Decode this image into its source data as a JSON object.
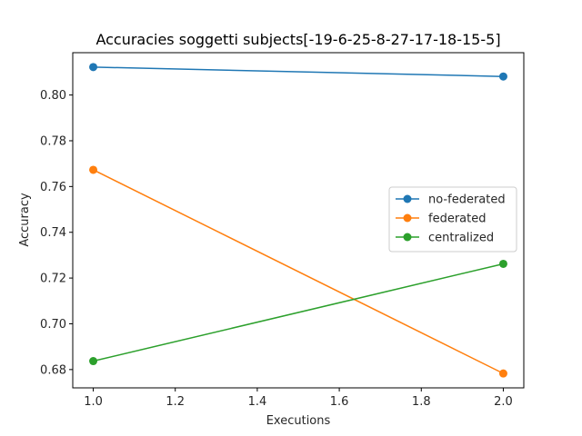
{
  "chart_data": {
    "type": "line",
    "title": "Accuracies soggetti subjects[-19-6-25-8-27-17-18-15-5]",
    "xlabel": "Executions",
    "ylabel": "Accuracy",
    "xlim": [
      0.95,
      2.05
    ],
    "ylim": [
      0.672,
      0.8185
    ],
    "xticks": [
      1.0,
      1.2,
      1.4,
      1.6,
      1.8,
      2.0
    ],
    "xtick_labels": [
      "1.0",
      "1.2",
      "1.4",
      "1.6",
      "1.8",
      "2.0"
    ],
    "yticks": [
      0.68,
      0.7,
      0.72,
      0.74,
      0.76,
      0.78,
      0.8
    ],
    "ytick_labels": [
      "0.68",
      "0.70",
      "0.72",
      "0.74",
      "0.76",
      "0.78",
      "0.80"
    ],
    "grid": false,
    "legend_position": "center-right",
    "x": [
      1.0,
      2.0
    ],
    "series": [
      {
        "name": "no-federated",
        "color": "#1f77b4",
        "values": [
          0.8122,
          0.8081
        ]
      },
      {
        "name": "federated",
        "color": "#ff7f0e",
        "values": [
          0.7673,
          0.6783
        ]
      },
      {
        "name": "centralized",
        "color": "#2ca02c",
        "values": [
          0.6837,
          0.7262
        ]
      }
    ]
  }
}
